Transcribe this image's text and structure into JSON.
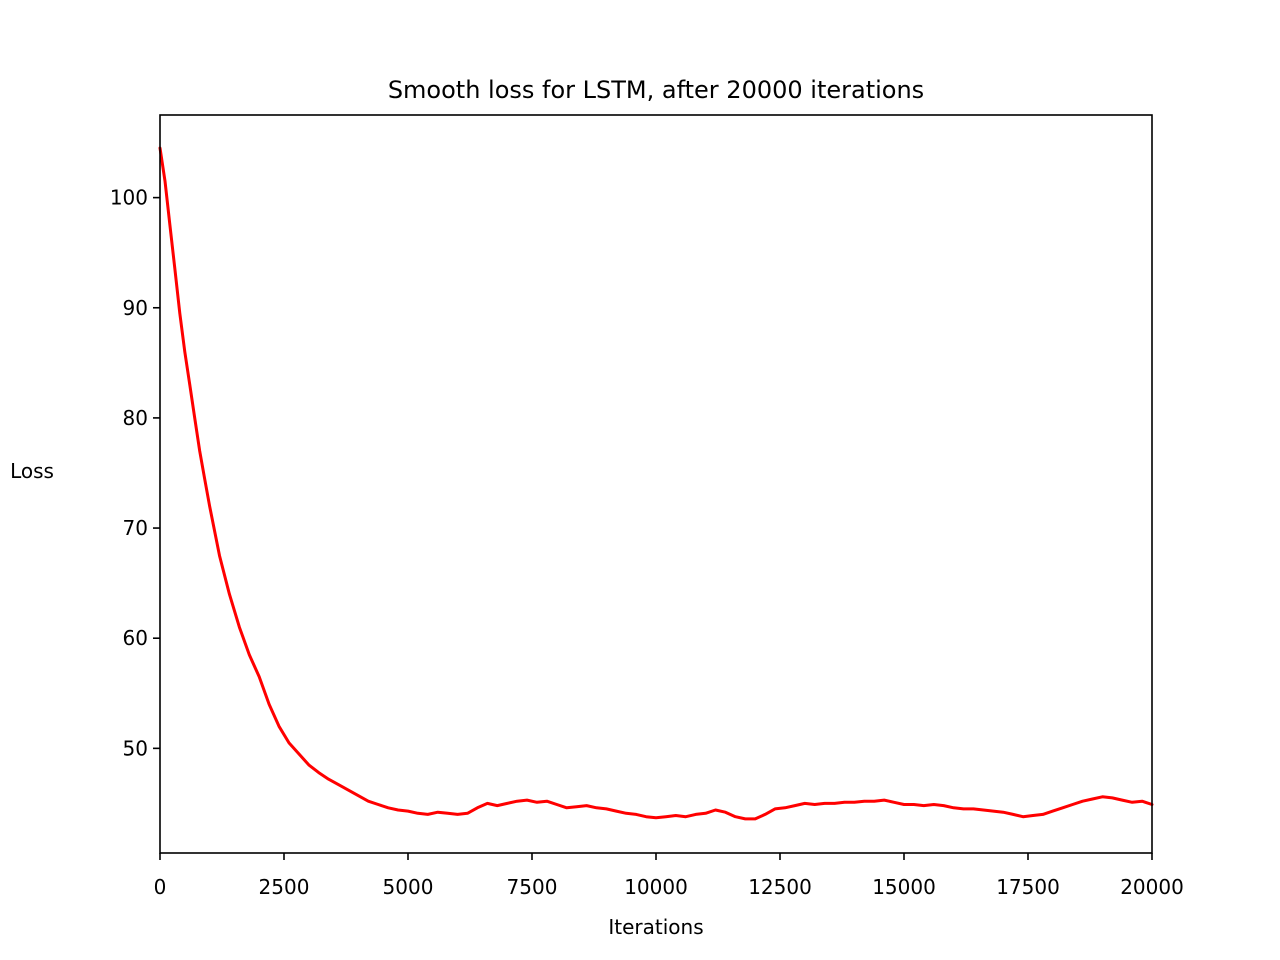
{
  "chart_data": {
    "type": "line",
    "title": "Smooth loss for LSTM, after 20000 iterations",
    "xlabel": "Iterations",
    "ylabel": "Loss",
    "xlim": [
      0,
      20000
    ],
    "ylim": [
      40.5,
      107.5
    ],
    "xticks": [
      0,
      2500,
      5000,
      7500,
      10000,
      12500,
      15000,
      17500,
      20000
    ],
    "yticks": [
      50,
      60,
      70,
      80,
      90,
      100
    ],
    "grid": false,
    "legend": "none",
    "series": [
      {
        "color": "#ff0000",
        "x": [
          0,
          100,
          200,
          300,
          400,
          500,
          600,
          700,
          800,
          900,
          1000,
          1200,
          1400,
          1600,
          1800,
          2000,
          2200,
          2400,
          2600,
          2800,
          3000,
          3200,
          3400,
          3600,
          3800,
          4000,
          4200,
          4400,
          4600,
          4800,
          5000,
          5200,
          5400,
          5600,
          5800,
          6000,
          6200,
          6400,
          6600,
          6800,
          7000,
          7200,
          7400,
          7600,
          7800,
          8000,
          8200,
          8400,
          8600,
          8800,
          9000,
          9200,
          9400,
          9600,
          9800,
          10000,
          10200,
          10400,
          10600,
          10800,
          11000,
          11200,
          11400,
          11600,
          11800,
          12000,
          12200,
          12400,
          12600,
          12800,
          13000,
          13200,
          13400,
          13600,
          13800,
          14000,
          14200,
          14400,
          14600,
          14800,
          15000,
          15200,
          15400,
          15600,
          15800,
          16000,
          16200,
          16400,
          16600,
          16800,
          17000,
          17200,
          17400,
          17600,
          17800,
          18000,
          18200,
          18400,
          18600,
          18800,
          19000,
          19200,
          19400,
          19600,
          19800,
          20000
        ],
        "y": [
          104.5,
          101.5,
          97.5,
          93.5,
          89.5,
          86.0,
          83.0,
          80.0,
          77.0,
          74.5,
          72.0,
          67.5,
          64.0,
          61.0,
          58.5,
          56.5,
          54.0,
          52.0,
          50.5,
          49.5,
          48.5,
          47.8,
          47.2,
          46.7,
          46.2,
          45.7,
          45.2,
          44.9,
          44.6,
          44.4,
          44.3,
          44.1,
          44.0,
          44.2,
          44.1,
          44.0,
          44.1,
          44.6,
          45.0,
          44.8,
          45.0,
          45.2,
          45.3,
          45.1,
          45.2,
          44.9,
          44.6,
          44.7,
          44.8,
          44.6,
          44.5,
          44.3,
          44.1,
          44.0,
          43.8,
          43.7,
          43.8,
          43.9,
          43.8,
          44.0,
          44.1,
          44.4,
          44.2,
          43.8,
          43.6,
          43.6,
          44.0,
          44.5,
          44.6,
          44.8,
          45.0,
          44.9,
          45.0,
          45.0,
          45.1,
          45.1,
          45.2,
          45.2,
          45.3,
          45.1,
          44.9,
          44.9,
          44.8,
          44.9,
          44.8,
          44.6,
          44.5,
          44.5,
          44.4,
          44.3,
          44.2,
          44.0,
          43.8,
          43.9,
          44.0,
          44.3,
          44.6,
          44.9,
          45.2,
          45.4,
          45.6,
          45.5,
          45.3,
          45.1,
          45.2,
          44.9
        ]
      }
    ]
  }
}
